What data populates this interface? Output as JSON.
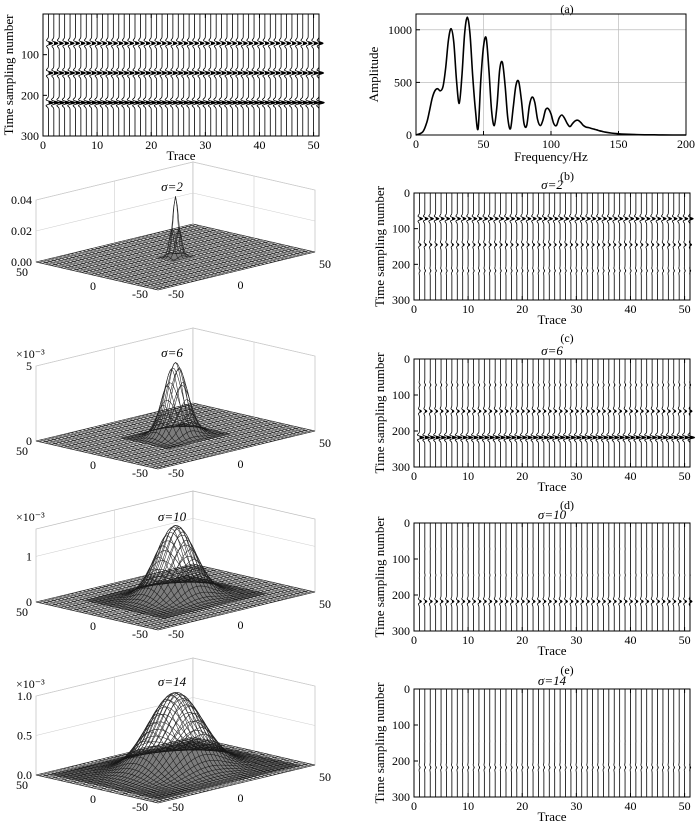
{
  "panel_labels": [
    "(a)",
    "(b)",
    "(c)",
    "(d)",
    "(e)"
  ],
  "chart_data": [
    {
      "id": "seismic-original",
      "type": "wiggle",
      "title": "",
      "xlabel": "Trace",
      "ylabel": "Time sampling number",
      "xlim": [
        0,
        51
      ],
      "ylim": [
        300,
        0
      ],
      "xticks": [
        "0",
        "10",
        "20",
        "30",
        "40",
        "50"
      ],
      "yticks": [
        "100",
        "200",
        "300"
      ],
      "trace_count": 51,
      "events": [
        {
          "time": 72,
          "amplitude": 0.9
        },
        {
          "time": 145,
          "amplitude": 1.0
        },
        {
          "time": 218,
          "amplitude": 1.15
        }
      ]
    },
    {
      "id": "amplitude-spectrum",
      "type": "line",
      "title": "",
      "xlabel": "Frequency/Hz",
      "ylabel": "Amplitude",
      "xlim": [
        0,
        200
      ],
      "ylim": [
        0,
        1150
      ],
      "xticks": [
        "0",
        "50",
        "100",
        "150",
        "200"
      ],
      "yticks": [
        "0",
        "500",
        "1000"
      ],
      "grid": true,
      "series": [
        {
          "x": [
            0,
            5,
            8,
            10,
            12,
            14,
            16,
            18,
            20,
            22,
            24,
            26,
            28,
            30,
            32,
            34,
            36,
            38,
            40,
            42,
            44,
            46,
            48,
            50,
            52,
            54,
            56,
            58,
            60,
            62,
            64,
            66,
            68,
            70,
            72,
            74,
            76,
            78,
            80,
            82,
            84,
            86,
            88,
            90,
            92,
            94,
            96,
            98,
            100,
            102,
            104,
            106,
            108,
            110,
            112,
            114,
            116,
            118,
            120,
            122,
            124,
            126,
            128,
            130,
            132,
            134,
            136,
            138,
            140,
            145,
            150,
            155,
            160,
            165,
            170,
            180,
            190,
            200
          ],
          "y": [
            0,
            30,
            120,
            230,
            350,
            420,
            440,
            420,
            460,
            640,
            900,
            1010,
            880,
            520,
            300,
            560,
            960,
            1120,
            960,
            560,
            240,
            60,
            520,
            840,
            920,
            620,
            230,
            90,
            280,
            620,
            690,
            470,
            160,
            60,
            260,
            470,
            510,
            340,
            110,
            90,
            280,
            360,
            310,
            150,
            90,
            140,
            240,
            250,
            200,
            110,
            90,
            160,
            190,
            160,
            110,
            80,
            110,
            135,
            140,
            120,
            90,
            75,
            70,
            62,
            55,
            48,
            40,
            34,
            28,
            18,
            12,
            8,
            5,
            3,
            2,
            1,
            0,
            0
          ]
        }
      ]
    },
    {
      "id": "gaussian-sigma-2",
      "type": "surface3d",
      "title": "σ=2",
      "sigma": 2,
      "zlim": [
        0,
        0.04
      ],
      "zticks": [
        "0.00",
        "0.02",
        "0.04"
      ],
      "zscale": "",
      "xticks": [
        "-50",
        "0",
        "50"
      ],
      "yticks": [
        "-50",
        "0",
        "50"
      ]
    },
    {
      "id": "seismic-sigma-2",
      "type": "wiggle",
      "title": "σ=2",
      "xlabel": "Trace",
      "ylabel": "Time sampling number",
      "xlim": [
        0,
        51
      ],
      "ylim": [
        300,
        0
      ],
      "xticks": [
        "0",
        "10",
        "20",
        "30",
        "40",
        "50"
      ],
      "yticks": [
        "0",
        "100",
        "200",
        "300"
      ],
      "trace_count": 51,
      "events": [
        {
          "time": 72,
          "amplitude": 0.7
        },
        {
          "time": 145,
          "amplitude": 0.35
        },
        {
          "time": 218,
          "amplitude": 0.15
        }
      ]
    },
    {
      "id": "gaussian-sigma-6",
      "type": "surface3d",
      "title": "σ=6",
      "sigma": 6,
      "zlim": [
        0,
        5
      ],
      "zticks": [
        "0",
        "5"
      ],
      "zscale": "×10⁻³",
      "xticks": [
        "-50",
        "0",
        "50"
      ],
      "yticks": [
        "-50",
        "0",
        "50"
      ]
    },
    {
      "id": "seismic-sigma-6",
      "type": "wiggle",
      "title": "σ=6",
      "xlabel": "Trace",
      "ylabel": "Time sampling number",
      "xlim": [
        0,
        51
      ],
      "ylim": [
        300,
        0
      ],
      "xticks": [
        "0",
        "10",
        "20",
        "30",
        "40",
        "50"
      ],
      "yticks": [
        "0",
        "100",
        "200",
        "300"
      ],
      "trace_count": 51,
      "events": [
        {
          "time": 72,
          "amplitude": 0.15
        },
        {
          "time": 145,
          "amplitude": 0.45
        },
        {
          "time": 218,
          "amplitude": 1.0
        }
      ]
    },
    {
      "id": "gaussian-sigma-10",
      "type": "surface3d",
      "title": "σ=10",
      "sigma": 10,
      "zlim": [
        0,
        1.6
      ],
      "zticks": [
        "0",
        "1"
      ],
      "zscale": "×10⁻³",
      "xticks": [
        "-50",
        "0",
        "50"
      ],
      "yticks": [
        "-50",
        "0",
        "50"
      ]
    },
    {
      "id": "seismic-sigma-10",
      "type": "wiggle",
      "title": "σ=10",
      "xlabel": "Trace",
      "ylabel": "Time sampling number",
      "xlim": [
        0,
        51
      ],
      "ylim": [
        300,
        0
      ],
      "xticks": [
        "0",
        "10",
        "20",
        "30",
        "40",
        "50"
      ],
      "yticks": [
        "0",
        "100",
        "200",
        "300"
      ],
      "trace_count": 51,
      "events": [
        {
          "time": 72,
          "amplitude": 0.02
        },
        {
          "time": 145,
          "amplitude": 0.05
        },
        {
          "time": 218,
          "amplitude": 0.45
        }
      ]
    },
    {
      "id": "gaussian-sigma-14",
      "type": "surface3d",
      "title": "σ=14",
      "sigma": 14,
      "zlim": [
        0,
        1.0
      ],
      "zticks": [
        "0.0",
        "0.5",
        "1.0"
      ],
      "zscale": "×10⁻³",
      "xticks": [
        "-50",
        "0",
        "50"
      ],
      "yticks": [
        "-50",
        "0",
        "50"
      ]
    },
    {
      "id": "seismic-sigma-14",
      "type": "wiggle",
      "title": "σ=14",
      "xlabel": "Trace",
      "ylabel": "Time sampling number",
      "xlim": [
        0,
        51
      ],
      "ylim": [
        300,
        0
      ],
      "xticks": [
        "0",
        "10",
        "20",
        "30",
        "40",
        "50"
      ],
      "yticks": [
        "0",
        "100",
        "200",
        "300"
      ],
      "trace_count": 51,
      "events": [
        {
          "time": 72,
          "amplitude": 0.0
        },
        {
          "time": 145,
          "amplitude": 0.01
        },
        {
          "time": 218,
          "amplitude": 0.15
        }
      ]
    }
  ]
}
